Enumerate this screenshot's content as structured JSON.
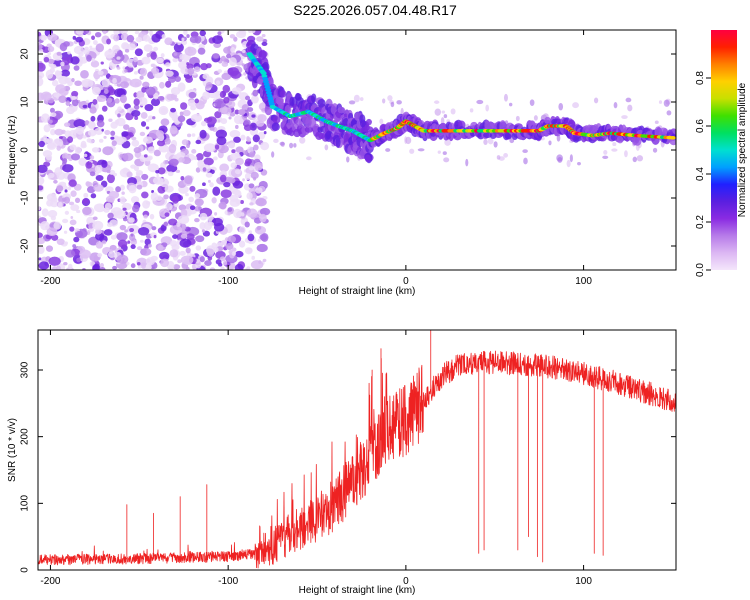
{
  "title": "S225.2026.057.04.48.R17",
  "colors": {
    "snr_line": "#ee2222",
    "axis": "#000000",
    "colorbar_stops": [
      "#f4e6fb",
      "#dcb7f3",
      "#b77be9",
      "#8a2be2",
      "#5a1fe0",
      "#2020ff",
      "#00a0ff",
      "#00e0d0",
      "#00e060",
      "#40e000",
      "#c8e000",
      "#ffd000",
      "#ff8000",
      "#ff2000",
      "#ff0040"
    ]
  },
  "chart_data": [
    {
      "type": "heatmap",
      "name": "spectrogram",
      "xlabel": "Height of straight line (km)",
      "ylabel": "Frequency (Hz)",
      "xlim": [
        -207,
        152
      ],
      "ylim": [
        -25,
        25
      ],
      "xticks": [
        -200,
        -100,
        0,
        100
      ],
      "yticks": [
        -20,
        -10,
        0,
        10,
        20
      ],
      "colorbar": {
        "label": "Normalized spectral amplitude",
        "range": [
          0.0,
          1.0
        ],
        "ticks": [
          "0.0",
          "0.2",
          "0.4",
          "0.6",
          "0.8"
        ]
      },
      "signal_track": [
        {
          "x": -88,
          "f": 20
        },
        {
          "x": -80,
          "f": 16
        },
        {
          "x": -75,
          "f": 9
        },
        {
          "x": -65,
          "f": 7
        },
        {
          "x": -55,
          "f": 8
        },
        {
          "x": -45,
          "f": 6
        },
        {
          "x": -38,
          "f": 5
        },
        {
          "x": -30,
          "f": 4
        },
        {
          "x": -25,
          "f": 3
        },
        {
          "x": -20,
          "f": 2
        },
        {
          "x": -12,
          "f": 3.5
        },
        {
          "x": -5,
          "f": 4.5
        },
        {
          "x": 0,
          "f": 6
        },
        {
          "x": 5,
          "f": 5
        },
        {
          "x": 10,
          "f": 4
        },
        {
          "x": 20,
          "f": 4
        },
        {
          "x": 40,
          "f": 4
        },
        {
          "x": 60,
          "f": 4
        },
        {
          "x": 75,
          "f": 4
        },
        {
          "x": 80,
          "f": 5
        },
        {
          "x": 90,
          "f": 5
        },
        {
          "x": 95,
          "f": 3.5
        },
        {
          "x": 105,
          "f": 3
        },
        {
          "x": 115,
          "f": 3.5
        },
        {
          "x": 130,
          "f": 3
        },
        {
          "x": 152,
          "f": 2.5
        }
      ]
    },
    {
      "type": "line",
      "name": "snr",
      "xlabel": "Height of straight line (km)",
      "ylabel": "SNR (10 * v/v)",
      "xlim": [
        -207,
        152
      ],
      "ylim": [
        0,
        360
      ],
      "xticks": [
        -200,
        -100,
        0,
        100
      ],
      "yticks": [
        0,
        100,
        200,
        300
      ],
      "trend": [
        {
          "x": -207,
          "y": 15
        },
        {
          "x": -150,
          "y": 17
        },
        {
          "x": -100,
          "y": 20
        },
        {
          "x": -85,
          "y": 25
        },
        {
          "x": -75,
          "y": 35
        },
        {
          "x": -65,
          "y": 55
        },
        {
          "x": -55,
          "y": 70
        },
        {
          "x": -45,
          "y": 85
        },
        {
          "x": -35,
          "y": 115
        },
        {
          "x": -25,
          "y": 150
        },
        {
          "x": -15,
          "y": 190
        },
        {
          "x": -10,
          "y": 215
        },
        {
          "x": 0,
          "y": 225
        },
        {
          "x": 10,
          "y": 255
        },
        {
          "x": 20,
          "y": 290
        },
        {
          "x": 30,
          "y": 308
        },
        {
          "x": 45,
          "y": 312
        },
        {
          "x": 60,
          "y": 310
        },
        {
          "x": 80,
          "y": 305
        },
        {
          "x": 100,
          "y": 295
        },
        {
          "x": 120,
          "y": 280
        },
        {
          "x": 140,
          "y": 262
        },
        {
          "x": 152,
          "y": 250
        }
      ],
      "spikes": [
        {
          "x": -157,
          "y": 98
        },
        {
          "x": -142,
          "y": 85
        },
        {
          "x": -127,
          "y": 110
        },
        {
          "x": -112,
          "y": 128
        },
        {
          "x": -19,
          "y": 300
        },
        {
          "x": -14,
          "y": 332
        },
        {
          "x": 14,
          "y": 360
        }
      ],
      "dropouts": [
        {
          "x": 41,
          "y": 25
        },
        {
          "x": 44,
          "y": 30
        },
        {
          "x": 63,
          "y": 30
        },
        {
          "x": 69,
          "y": 50
        },
        {
          "x": 74,
          "y": 20
        },
        {
          "x": 77,
          "y": 12
        },
        {
          "x": 106,
          "y": 25
        },
        {
          "x": 111,
          "y": 22
        }
      ]
    }
  ]
}
